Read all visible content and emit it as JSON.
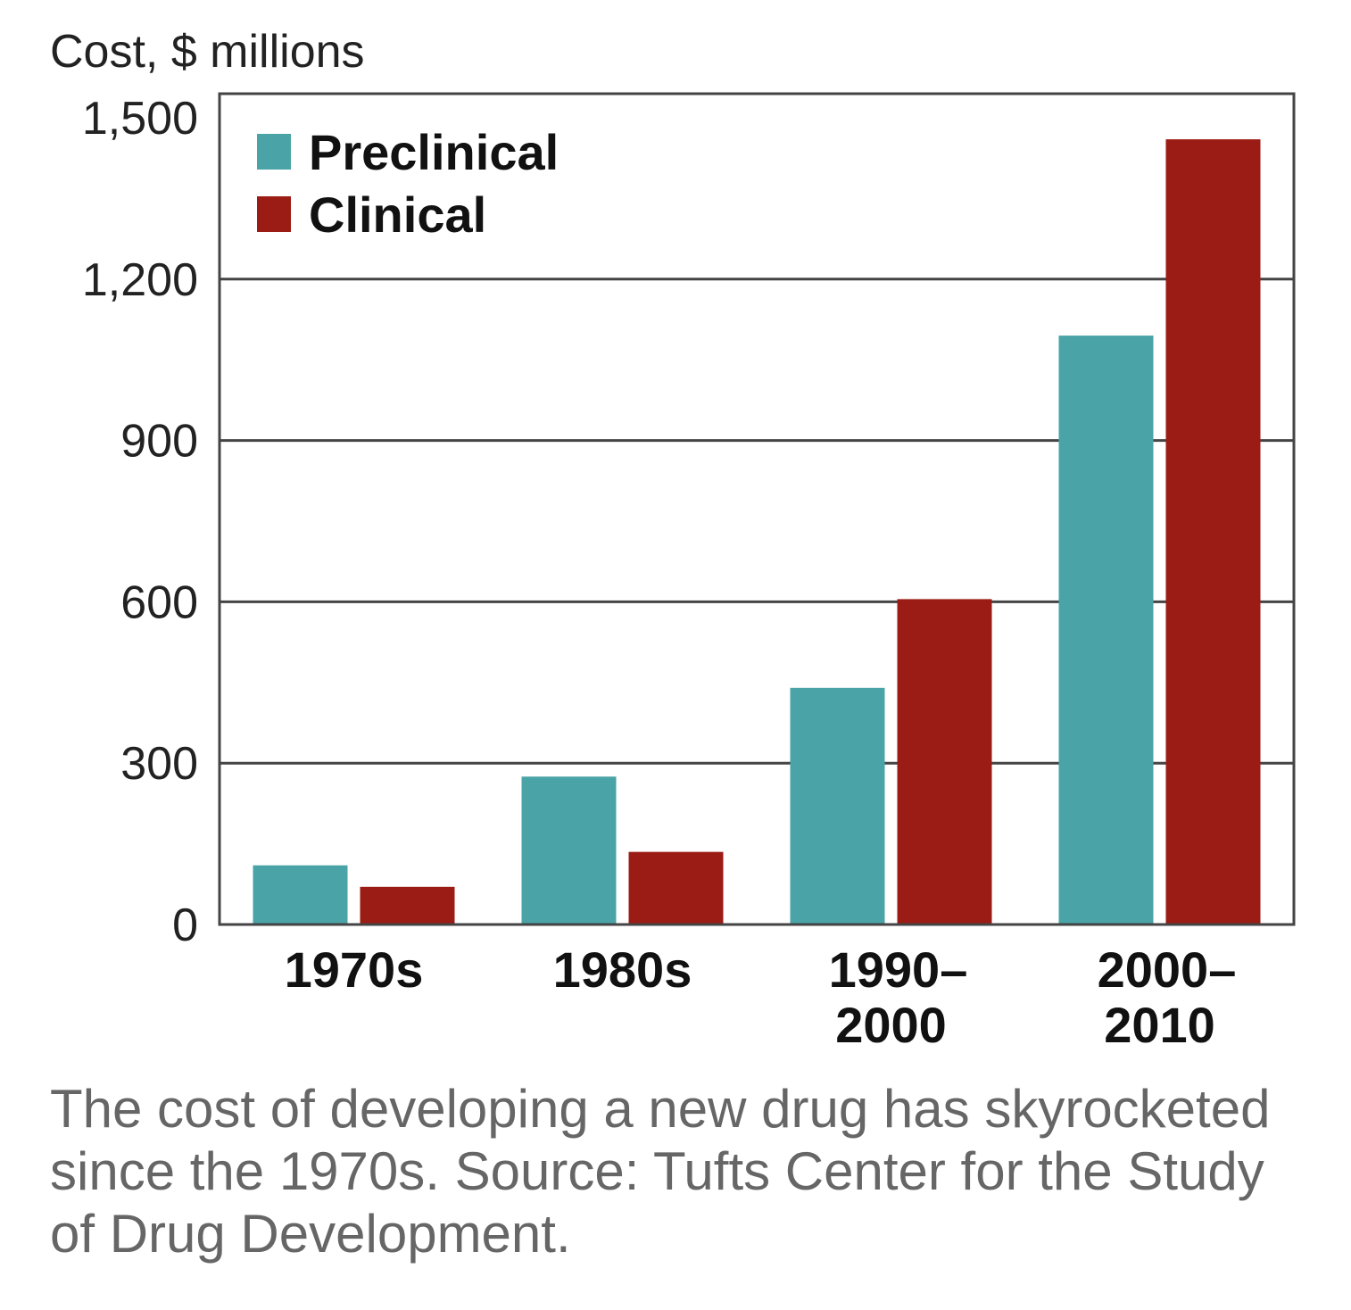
{
  "chart_data": {
    "type": "bar",
    "ylabel": "Cost, $ millions",
    "xlabel": "",
    "ylim": [
      0,
      1500
    ],
    "yticks": [
      0,
      300,
      600,
      900,
      1200,
      1500
    ],
    "ytick_labels": [
      "0",
      "300",
      "600",
      "900",
      "1,200",
      "1,500"
    ],
    "categories": [
      "1970s",
      "1980s",
      "1990–2000",
      "2000–2010"
    ],
    "category_lines": [
      [
        "1970s"
      ],
      [
        "1980s"
      ],
      [
        "1990–",
        "2000"
      ],
      [
        "2000–",
        "2010"
      ]
    ],
    "series": [
      {
        "name": "Preclinical",
        "color": "#4aa3a6",
        "values": [
          110,
          275,
          440,
          1095
        ]
      },
      {
        "name": "Clinical",
        "color": "#9b1c14",
        "values": [
          70,
          135,
          605,
          1460
        ]
      }
    ],
    "grid": true,
    "legend_position": "top-left"
  },
  "caption": "The cost of developing a new drug has skyrocketed since the 1970s.  Source: Tufts Center for the Study of Drug Development."
}
